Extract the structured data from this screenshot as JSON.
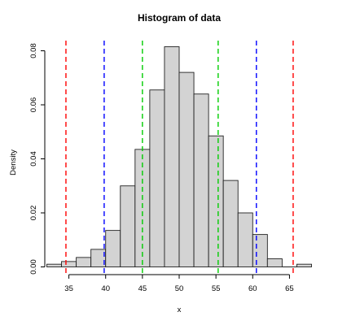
{
  "chart_data": {
    "type": "bar",
    "title": "Histogram of data",
    "xlabel": "x",
    "ylabel": "Density",
    "xlim": [
      32.5,
      67.5
    ],
    "ylim": [
      0,
      0.08
    ],
    "x_ticks": [
      35,
      40,
      45,
      50,
      55,
      60,
      65
    ],
    "y_ticks": [
      0.0,
      0.02,
      0.04,
      0.06,
      0.08
    ],
    "y_tick_labels": [
      "0.00",
      "0.02",
      "0.04",
      "0.06",
      "0.08"
    ],
    "bins": [
      {
        "x0": 32,
        "x1": 34,
        "density": 0.001
      },
      {
        "x0": 34,
        "x1": 36,
        "density": 0.002
      },
      {
        "x0": 36,
        "x1": 38,
        "density": 0.0035
      },
      {
        "x0": 38,
        "x1": 40,
        "density": 0.0065
      },
      {
        "x0": 40,
        "x1": 42,
        "density": 0.0135
      },
      {
        "x0": 42,
        "x1": 44,
        "density": 0.03
      },
      {
        "x0": 44,
        "x1": 46,
        "density": 0.0435
      },
      {
        "x0": 46,
        "x1": 48,
        "density": 0.0655
      },
      {
        "x0": 48,
        "x1": 50,
        "density": 0.0815
      },
      {
        "x0": 50,
        "x1": 52,
        "density": 0.072
      },
      {
        "x0": 52,
        "x1": 54,
        "density": 0.064
      },
      {
        "x0": 54,
        "x1": 56,
        "density": 0.0485
      },
      {
        "x0": 56,
        "x1": 58,
        "density": 0.032
      },
      {
        "x0": 58,
        "x1": 60,
        "density": 0.02
      },
      {
        "x0": 60,
        "x1": 62,
        "density": 0.012
      },
      {
        "x0": 62,
        "x1": 64,
        "density": 0.003
      },
      {
        "x0": 64,
        "x1": 66,
        "density": 0.0
      },
      {
        "x0": 66,
        "x1": 68,
        "density": 0.001
      }
    ],
    "vlines": [
      {
        "x": 34.6,
        "color": "#ff0000"
      },
      {
        "x": 65.5,
        "color": "#ff0000"
      },
      {
        "x": 39.8,
        "color": "#0000ff"
      },
      {
        "x": 60.5,
        "color": "#0000ff"
      },
      {
        "x": 45.0,
        "color": "#00cc00"
      },
      {
        "x": 55.3,
        "color": "#00cc00"
      }
    ]
  }
}
